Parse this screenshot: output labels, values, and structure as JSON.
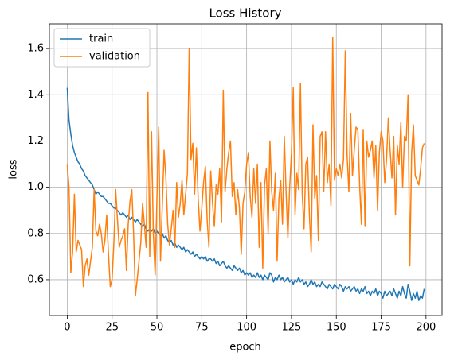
{
  "chart_data": {
    "type": "line",
    "title": "Loss History",
    "xlabel": "epoch",
    "ylabel": "loss",
    "x": [
      0,
      1,
      2,
      3,
      4,
      5,
      6,
      7,
      8,
      9,
      10,
      11,
      12,
      13,
      14,
      15,
      16,
      17,
      18,
      19,
      20,
      21,
      22,
      23,
      24,
      25,
      26,
      27,
      28,
      29,
      30,
      31,
      32,
      33,
      34,
      35,
      36,
      37,
      38,
      39,
      40,
      41,
      42,
      43,
      44,
      45,
      46,
      47,
      48,
      49,
      50,
      51,
      52,
      53,
      54,
      55,
      56,
      57,
      58,
      59,
      60,
      61,
      62,
      63,
      64,
      65,
      66,
      67,
      68,
      69,
      70,
      71,
      72,
      73,
      74,
      75,
      76,
      77,
      78,
      79,
      80,
      81,
      82,
      83,
      84,
      85,
      86,
      87,
      88,
      89,
      90,
      91,
      92,
      93,
      94,
      95,
      96,
      97,
      98,
      99,
      100,
      101,
      102,
      103,
      104,
      105,
      106,
      107,
      108,
      109,
      110,
      111,
      112,
      113,
      114,
      115,
      116,
      117,
      118,
      119,
      120,
      121,
      122,
      123,
      124,
      125,
      126,
      127,
      128,
      129,
      130,
      131,
      132,
      133,
      134,
      135,
      136,
      137,
      138,
      139,
      140,
      141,
      142,
      143,
      144,
      145,
      146,
      147,
      148,
      149,
      150,
      151,
      152,
      153,
      154,
      155,
      156,
      157,
      158,
      159,
      160,
      161,
      162,
      163,
      164,
      165,
      166,
      167,
      168,
      169,
      170,
      171,
      172,
      173,
      174,
      175,
      176,
      177,
      178,
      179,
      180,
      181,
      182,
      183,
      184,
      185,
      186,
      187,
      188,
      189,
      190,
      191,
      192,
      193,
      194,
      195,
      196,
      197,
      198,
      199
    ],
    "series": [
      {
        "name": "train",
        "color": "#1f77b4",
        "values": [
          1.43,
          1.29,
          1.23,
          1.18,
          1.15,
          1.13,
          1.11,
          1.1,
          1.08,
          1.07,
          1.05,
          1.04,
          1.03,
          1.02,
          1.01,
          0.99,
          0.97,
          0.98,
          0.97,
          0.96,
          0.96,
          0.95,
          0.94,
          0.93,
          0.93,
          0.92,
          0.91,
          0.91,
          0.9,
          0.89,
          0.88,
          0.89,
          0.88,
          0.87,
          0.88,
          0.86,
          0.87,
          0.86,
          0.85,
          0.86,
          0.85,
          0.84,
          0.83,
          0.84,
          0.82,
          0.81,
          0.82,
          0.81,
          0.82,
          0.8,
          0.81,
          0.8,
          0.79,
          0.8,
          0.78,
          0.79,
          0.77,
          0.76,
          0.77,
          0.75,
          0.76,
          0.74,
          0.75,
          0.74,
          0.73,
          0.74,
          0.72,
          0.73,
          0.72,
          0.71,
          0.72,
          0.7,
          0.71,
          0.7,
          0.69,
          0.7,
          0.69,
          0.7,
          0.68,
          0.69,
          0.69,
          0.68,
          0.69,
          0.67,
          0.68,
          0.66,
          0.67,
          0.68,
          0.66,
          0.65,
          0.66,
          0.65,
          0.64,
          0.66,
          0.65,
          0.64,
          0.65,
          0.63,
          0.64,
          0.62,
          0.63,
          0.62,
          0.63,
          0.61,
          0.62,
          0.61,
          0.63,
          0.61,
          0.62,
          0.6,
          0.62,
          0.61,
          0.6,
          0.63,
          0.62,
          0.59,
          0.61,
          0.6,
          0.62,
          0.6,
          0.61,
          0.59,
          0.6,
          0.61,
          0.59,
          0.6,
          0.58,
          0.6,
          0.59,
          0.61,
          0.59,
          0.6,
          0.58,
          0.59,
          0.57,
          0.58,
          0.6,
          0.58,
          0.59,
          0.57,
          0.58,
          0.57,
          0.59,
          0.58,
          0.57,
          0.56,
          0.58,
          0.57,
          0.56,
          0.58,
          0.57,
          0.56,
          0.58,
          0.57,
          0.55,
          0.57,
          0.56,
          0.57,
          0.55,
          0.56,
          0.57,
          0.55,
          0.56,
          0.54,
          0.56,
          0.55,
          0.57,
          0.54,
          0.55,
          0.53,
          0.55,
          0.54,
          0.56,
          0.53,
          0.55,
          0.54,
          0.52,
          0.55,
          0.53,
          0.54,
          0.55,
          0.53,
          0.56,
          0.54,
          0.52,
          0.55,
          0.53,
          0.57,
          0.54,
          0.52,
          0.58,
          0.55,
          0.51,
          0.54,
          0.52,
          0.55,
          0.51,
          0.53,
          0.52,
          0.56
        ]
      },
      {
        "name": "validation",
        "color": "#ff7f0e",
        "values": [
          1.1,
          1.0,
          0.63,
          0.72,
          0.97,
          0.72,
          0.77,
          0.75,
          0.73,
          0.57,
          0.66,
          0.69,
          0.62,
          0.68,
          0.74,
          0.99,
          0.81,
          0.79,
          0.84,
          0.8,
          0.72,
          0.77,
          0.88,
          0.71,
          0.57,
          0.6,
          0.76,
          0.99,
          0.86,
          0.74,
          0.77,
          0.79,
          0.82,
          0.64,
          0.84,
          0.94,
          0.99,
          0.8,
          0.53,
          0.6,
          0.68,
          0.76,
          0.93,
          0.84,
          0.74,
          1.41,
          0.7,
          1.24,
          0.8,
          0.62,
          0.95,
          1.26,
          0.68,
          0.92,
          1.16,
          1.04,
          0.84,
          0.75,
          0.82,
          0.9,
          0.74,
          1.02,
          0.87,
          0.93,
          1.03,
          0.88,
          0.97,
          1.06,
          1.6,
          1.12,
          1.19,
          0.97,
          1.17,
          0.95,
          0.81,
          0.91,
          1.02,
          1.09,
          0.86,
          0.74,
          1.07,
          0.93,
          0.83,
          1.01,
          0.97,
          1.08,
          0.85,
          1.42,
          0.98,
          1.08,
          1.15,
          1.2,
          0.96,
          1.02,
          0.88,
          0.99,
          0.91,
          0.71,
          0.93,
          0.98,
          1.1,
          1.15,
          0.96,
          0.87,
          1.08,
          0.93,
          1.1,
          0.74,
          1.02,
          0.65,
          1.01,
          1.08,
          0.8,
          1.2,
          0.98,
          0.9,
          1.06,
          0.68,
          0.95,
          1.03,
          0.84,
          1.22,
          0.98,
          0.78,
          1.0,
          1.15,
          1.43,
          0.88,
          1.06,
          0.99,
          1.45,
          0.97,
          0.82,
          1.1,
          1.13,
          0.88,
          0.72,
          1.27,
          0.95,
          1.05,
          0.77,
          1.22,
          1.24,
          0.98,
          1.24,
          1.02,
          1.1,
          0.92,
          1.65,
          1.03,
          1.08,
          1.05,
          1.1,
          1.04,
          1.12,
          1.59,
          1.14,
          0.98,
          1.32,
          1.05,
          1.16,
          1.26,
          1.25,
          1.01,
          0.84,
          1.25,
          0.83,
          1.2,
          1.13,
          1.16,
          1.2,
          1.04,
          1.18,
          0.9,
          1.15,
          1.24,
          1.2,
          1.02,
          1.12,
          1.3,
          1.16,
          1.04,
          1.22,
          0.88,
          1.18,
          1.1,
          1.28,
          1.0,
          1.22,
          1.2,
          1.4,
          0.66,
          1.15,
          1.27,
          1.05,
          1.03,
          1.01,
          1.08,
          1.17,
          1.19
        ]
      }
    ],
    "xlim": [
      -9.95,
      208.95
    ],
    "xticks": [
      0,
      25,
      50,
      75,
      100,
      125,
      150,
      175,
      200
    ],
    "ylim": [
      0.445,
      1.707
    ],
    "yticks": [
      0.6,
      0.8,
      {
        "value": 1,
        "label": "1.0"
      },
      1.2,
      1.4,
      1.6
    ],
    "grid": true,
    "legend": "upper left"
  }
}
